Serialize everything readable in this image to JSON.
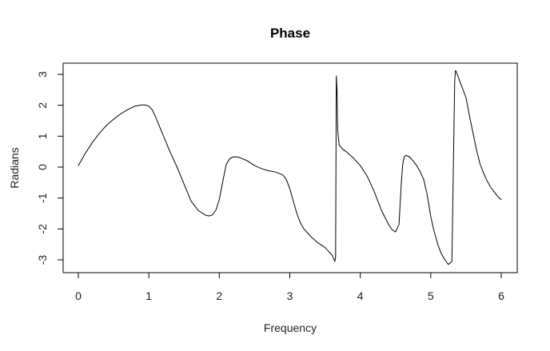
{
  "chart_data": {
    "type": "line",
    "title": "Phase",
    "xlabel": "Frequency",
    "ylabel": "Radians",
    "xlim": [
      0,
      6
    ],
    "ylim": [
      -3,
      3
    ],
    "xticks": [
      0,
      1,
      2,
      3,
      4,
      5,
      6
    ],
    "yticks": [
      -3,
      -2,
      -1,
      0,
      1,
      2,
      3
    ],
    "xtick_labels": [
      "0",
      "1",
      "2",
      "3",
      "4",
      "5",
      "6"
    ],
    "ytick_labels": [
      "-3",
      "-2",
      "-1",
      "0",
      "1",
      "2",
      "3"
    ],
    "grid": false,
    "legend": "none",
    "line_color": "#000000",
    "series": [
      {
        "x": [
          0.0,
          0.1,
          0.2,
          0.3,
          0.4,
          0.5,
          0.6,
          0.7,
          0.8,
          0.9,
          0.95,
          1.0,
          1.05,
          1.1,
          1.2,
          1.3,
          1.4,
          1.5,
          1.6,
          1.7,
          1.8,
          1.85,
          1.9,
          1.95,
          2.0,
          2.05,
          2.1,
          2.15,
          2.2,
          2.25,
          2.3,
          2.4,
          2.5,
          2.6,
          2.7,
          2.8,
          2.9,
          2.95,
          3.0,
          3.05,
          3.1,
          3.15,
          3.2,
          3.3,
          3.4,
          3.5,
          3.6,
          3.64,
          3.65,
          3.66,
          3.67,
          3.68,
          3.7,
          3.75,
          3.8,
          3.9,
          4.0,
          4.1,
          4.2,
          4.3,
          4.4,
          4.45,
          4.5,
          4.55,
          4.58,
          4.6,
          4.62,
          4.65,
          4.7,
          4.75,
          4.8,
          4.85,
          4.9,
          4.95,
          5.0,
          5.05,
          5.1,
          5.15,
          5.2,
          5.25,
          5.3,
          5.34,
          5.35,
          5.36,
          5.4,
          5.45,
          5.5,
          5.55,
          5.6,
          5.65,
          5.7,
          5.75,
          5.8,
          5.85,
          5.9,
          5.95,
          6.0
        ],
        "y": [
          0.05,
          0.45,
          0.8,
          1.1,
          1.35,
          1.55,
          1.72,
          1.86,
          1.97,
          2.01,
          2.01,
          1.97,
          1.85,
          1.6,
          1.05,
          0.5,
          0.0,
          -0.55,
          -1.1,
          -1.4,
          -1.55,
          -1.58,
          -1.55,
          -1.4,
          -1.05,
          -0.45,
          0.1,
          0.28,
          0.33,
          0.33,
          0.3,
          0.2,
          0.05,
          -0.05,
          -0.12,
          -0.16,
          -0.25,
          -0.4,
          -0.7,
          -1.1,
          -1.5,
          -1.8,
          -2.0,
          -2.25,
          -2.45,
          -2.6,
          -2.85,
          -3.05,
          -2.9,
          2.95,
          2.5,
          1.2,
          0.72,
          0.58,
          0.5,
          0.3,
          0.05,
          -0.3,
          -0.8,
          -1.4,
          -1.85,
          -2.02,
          -2.1,
          -1.85,
          -0.6,
          0.05,
          0.32,
          0.38,
          0.33,
          0.2,
          0.05,
          -0.15,
          -0.4,
          -0.9,
          -1.6,
          -2.1,
          -2.5,
          -2.8,
          -3.0,
          -3.15,
          -3.05,
          2.8,
          3.12,
          3.1,
          2.85,
          2.55,
          2.25,
          1.65,
          1.1,
          0.55,
          0.1,
          -0.2,
          -0.45,
          -0.65,
          -0.8,
          -0.95,
          -1.05
        ]
      }
    ]
  }
}
